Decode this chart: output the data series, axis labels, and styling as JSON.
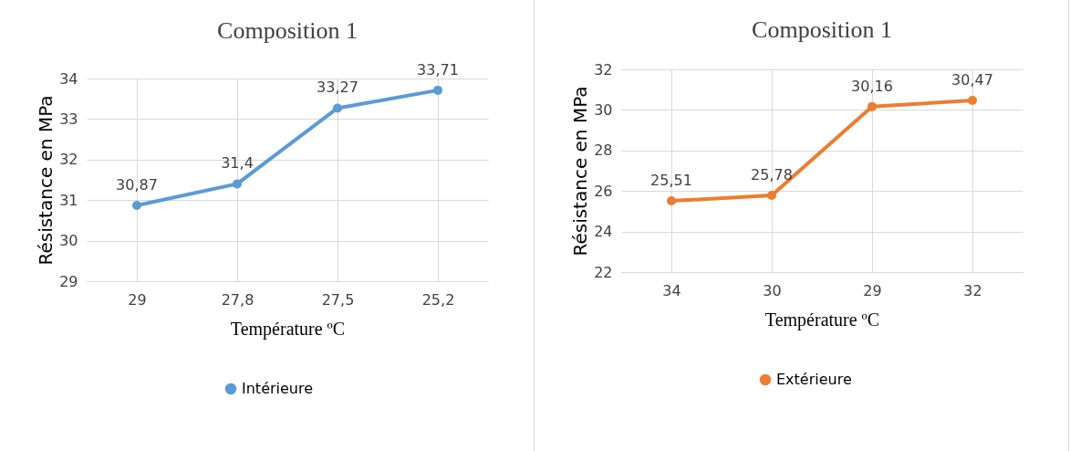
{
  "chart_data": [
    {
      "type": "line",
      "title": "Composition 1",
      "xlabel": "Température ºC",
      "ylabel": "Résistance en MPa",
      "categories": [
        "29",
        "27,8",
        "27,5",
        "25,2"
      ],
      "series": [
        {
          "name": "Intérieure",
          "color": "#5b9bd5",
          "values": [
            30.87,
            31.4,
            33.27,
            33.71
          ],
          "value_labels": [
            "30,87",
            "31,4",
            "33,27",
            "33,71"
          ]
        }
      ],
      "ylim": [
        29,
        34
      ],
      "yticks": [
        29,
        30,
        31,
        32,
        33,
        34
      ],
      "grid": true,
      "legend": "bottom",
      "marker": "circle",
      "line_style": "solid"
    },
    {
      "type": "line",
      "title": "Composition 1",
      "xlabel": "Température ºC",
      "ylabel": "Résistance en MPa",
      "categories": [
        "34",
        "30",
        "29",
        "32"
      ],
      "series": [
        {
          "name": "Extérieure",
          "color": "#ed7d31",
          "values": [
            25.51,
            25.78,
            30.16,
            30.47
          ],
          "value_labels": [
            "25,51",
            "25,78",
            "30,16",
            "30,47"
          ]
        }
      ],
      "ylim": [
        22,
        32
      ],
      "yticks": [
        22,
        24,
        26,
        28,
        30,
        32
      ],
      "grid": true,
      "legend": "bottom",
      "marker": "circle",
      "line_style": "solid"
    }
  ]
}
